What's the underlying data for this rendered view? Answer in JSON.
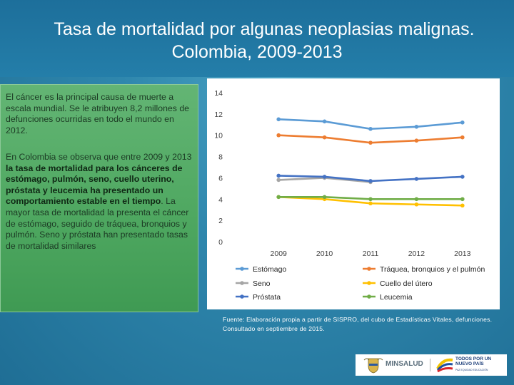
{
  "title": {
    "line1": "Tasa de mortalidad por algunas neoplasias malignas.",
    "line2": "Colombia, 2009-2013"
  },
  "text": {
    "p1": "El cáncer es la principal causa de muerte a escala mundial. Se le atribuyen 8,2 millones de defunciones ocurridas en todo el mundo en 2012.",
    "p2_a": "En Colombia se observa que entre 2009 y 2013 ",
    "p2_b": "la tasa de mortalidad para los cánceres de estómago, pulmón, seno, cuello uterino, próstata y leucemia ha presentado un comportamiento estable en el tiempo",
    "p2_c": ". La mayor tasa de mortalidad la presenta el cáncer de estómago, seguido de tráquea, bronquios y pulmón. Seno y próstata han presentado tasas de mortalidad similares"
  },
  "source": {
    "line1": "Fuente: Elaboración propia a partir de SISPRO, del cubo de Estadísticas Vitales, defunciones.",
    "line2": "Consultado en septiembre de 2015."
  },
  "logos": {
    "ministry": "MINSALUD",
    "gov_line1": "TODOS POR UN",
    "gov_line2": "NUEVO PAÍS",
    "gov_tagline": "PAZ EQUIDAD EDUCACIÓN"
  },
  "chart_data": {
    "type": "line",
    "title": "",
    "xlabel": "",
    "ylabel": "",
    "categories": [
      "2009",
      "2010",
      "2011",
      "2012",
      "2013"
    ],
    "ylim": [
      0,
      14
    ],
    "yticks": [
      0,
      2,
      4,
      6,
      8,
      10,
      12,
      14
    ],
    "grid": false,
    "legend_position": "bottom",
    "series": [
      {
        "name": "Estómago",
        "color": "#5b9bd5",
        "values": [
          11.5,
          11.3,
          10.6,
          10.8,
          11.2
        ]
      },
      {
        "name": "Tráquea, bronquios y el pulmón",
        "color": "#ed7d31",
        "values": [
          10.0,
          9.8,
          9.3,
          9.5,
          9.8
        ]
      },
      {
        "name": "Seno",
        "color": "#a5a5a5",
        "values": [
          5.8,
          6.0,
          5.6,
          null,
          null
        ]
      },
      {
        "name": "Cuello del útero",
        "color": "#ffc000",
        "values": [
          4.2,
          4.0,
          3.6,
          3.5,
          3.4
        ]
      },
      {
        "name": "Próstata",
        "color": "#4472c4",
        "values": [
          6.2,
          6.1,
          5.7,
          5.9,
          6.1
        ]
      },
      {
        "name": "Leucemia",
        "color": "#70ad47",
        "values": [
          4.2,
          4.2,
          4.0,
          4.0,
          4.0
        ]
      }
    ]
  }
}
